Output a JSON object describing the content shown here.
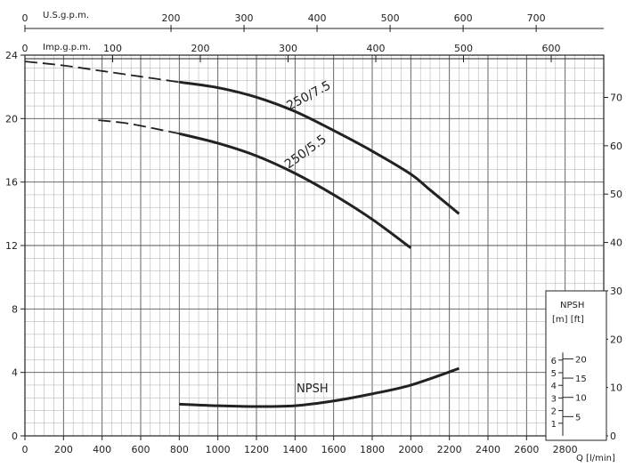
{
  "chart_data": {
    "type": "line",
    "x_label": "Q [l/min]",
    "x_ticks": [
      0,
      200,
      400,
      600,
      800,
      1000,
      1200,
      1400,
      1600,
      1800,
      2000,
      2200,
      2400,
      2600,
      2800
    ],
    "xlim": [
      0,
      3000
    ],
    "left_ticks": [
      0,
      4,
      8,
      12,
      16,
      20,
      24
    ],
    "ylim": [
      0,
      24
    ],
    "right_ticks": [
      0,
      10,
      20,
      30,
      40,
      50,
      60,
      70
    ],
    "right_scale_ft_per_m": 3.2808,
    "us_gpm": {
      "label": "U.S.g.p.m.",
      "ticks": [
        "0",
        "200",
        "300",
        "400",
        "500",
        "600",
        "700"
      ],
      "values": [
        0,
        200,
        300,
        400,
        500,
        600,
        700
      ],
      "lpm_per_unit": 3.7854
    },
    "imp_gpm": {
      "label": "Imp.g.p.m.",
      "ticks": [
        "0",
        "100",
        "200",
        "300",
        "400",
        "500",
        "600"
      ],
      "values": [
        0,
        100,
        200,
        300,
        400,
        500,
        600
      ],
      "lpm_per_unit": 4.5461
    },
    "series": [
      {
        "name": "250/7.5",
        "dashed_part": [
          [
            0,
            23.6
          ],
          [
            200,
            23.35
          ],
          [
            400,
            23.0
          ],
          [
            600,
            22.65
          ],
          [
            800,
            22.3
          ]
        ],
        "solid_part": [
          [
            800,
            22.3
          ],
          [
            1000,
            21.95
          ],
          [
            1200,
            21.35
          ],
          [
            1400,
            20.45
          ],
          [
            1600,
            19.25
          ],
          [
            1800,
            17.95
          ],
          [
            2000,
            16.5
          ],
          [
            2100,
            15.5
          ],
          [
            2250,
            14.0
          ]
        ]
      },
      {
        "name": "250/5.5",
        "dashed_part": [
          [
            380,
            19.9
          ],
          [
            500,
            19.75
          ],
          [
            600,
            19.55
          ],
          [
            700,
            19.3
          ],
          [
            800,
            19.05
          ]
        ],
        "solid_part": [
          [
            800,
            19.05
          ],
          [
            1000,
            18.45
          ],
          [
            1200,
            17.65
          ],
          [
            1400,
            16.55
          ],
          [
            1600,
            15.2
          ],
          [
            1800,
            13.65
          ],
          [
            2000,
            11.85
          ]
        ]
      },
      {
        "name": "NPSH",
        "solid_part": [
          [
            800,
            2.0
          ],
          [
            1000,
            1.9
          ],
          [
            1200,
            1.85
          ],
          [
            1400,
            1.9
          ],
          [
            1600,
            2.2
          ],
          [
            1800,
            2.65
          ],
          [
            2000,
            3.2
          ],
          [
            2250,
            4.25
          ]
        ]
      }
    ],
    "npsh_inset": {
      "title": "NPSH",
      "units": "[m]  [ft]",
      "m_ticks": [
        "1",
        "2",
        "3",
        "4",
        "5",
        "6"
      ],
      "ft_ticks": [
        "5",
        "10",
        "15",
        "20"
      ]
    }
  }
}
